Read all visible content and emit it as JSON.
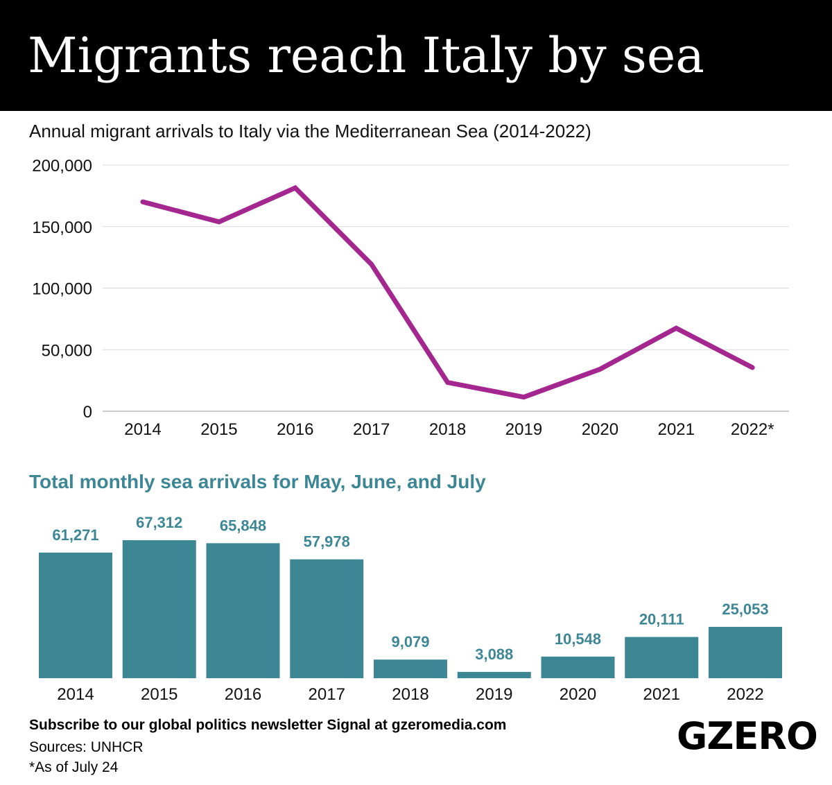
{
  "header": {
    "title": "Migrants reach Italy by sea"
  },
  "chart_data": [
    {
      "type": "line",
      "title": "Annual migrant arrivals to Italy via the Mediterranean Sea (2014-2022)",
      "categories": [
        "2014",
        "2015",
        "2016",
        "2017",
        "2018",
        "2019",
        "2020",
        "2021",
        "2022*"
      ],
      "values": [
        170100,
        153842,
        181436,
        119369,
        23370,
        11471,
        34154,
        67477,
        35500
      ],
      "ylim": [
        0,
        200000
      ],
      "yticks": [
        "0",
        "50,000",
        "100,000",
        "150,000",
        "200,000"
      ],
      "grid": true,
      "color": "#a3278f"
    },
    {
      "type": "bar",
      "title": "Total monthly sea arrivals for May, June, and July",
      "categories": [
        "2014",
        "2015",
        "2016",
        "2017",
        "2018",
        "2019",
        "2020",
        "2021",
        "2022"
      ],
      "values": [
        61271,
        67312,
        65848,
        57978,
        9079,
        3088,
        10548,
        20111,
        25053
      ],
      "labels": [
        "61,271",
        "67,312",
        "65,848",
        "57,978",
        "9,079",
        "3,088",
        "10,548",
        "20,111",
        "25,053"
      ],
      "color": "#3d8795"
    }
  ],
  "footer": {
    "subscribe": "Subscribe to our global politics newsletter Signal at gzeromedia.com",
    "sources": "Sources: UNHCR",
    "note": "*As of July 24",
    "logo": "GZERO"
  }
}
